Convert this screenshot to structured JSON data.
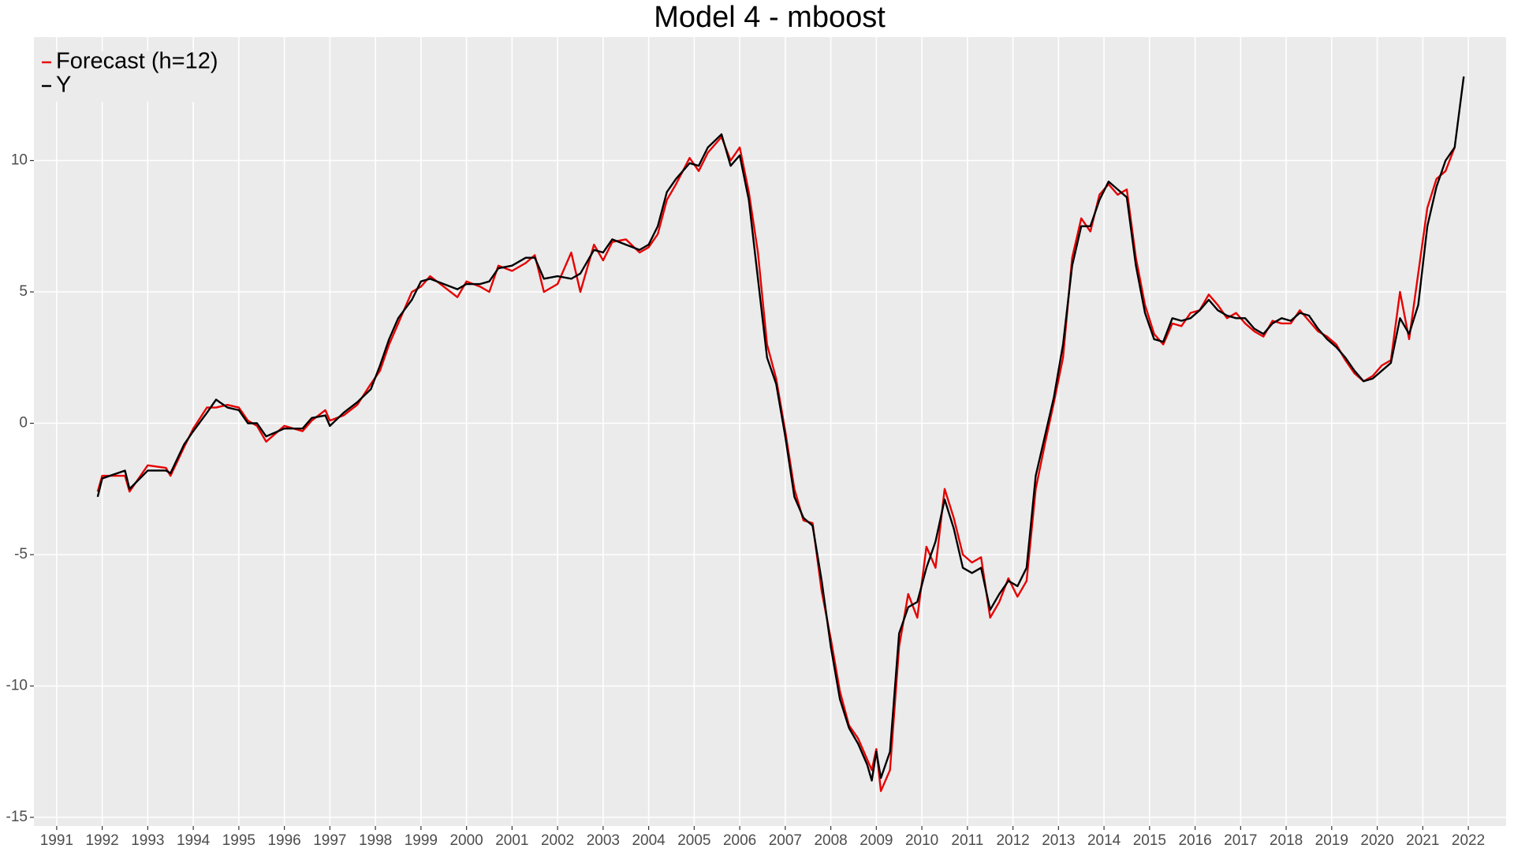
{
  "chart_data": {
    "type": "line",
    "title": "Model 4 - mboost",
    "x": [
      1991.9,
      1992.0,
      1992.5,
      1992.6,
      1993.0,
      1993.4,
      1993.5,
      1993.8,
      1994.0,
      1994.3,
      1994.5,
      1994.75,
      1995.0,
      1995.2,
      1995.4,
      1995.6,
      1996.0,
      1996.4,
      1996.6,
      1996.9,
      1997.0,
      1997.3,
      1997.6,
      1997.9,
      1998.1,
      1998.3,
      1998.5,
      1998.8,
      1999.0,
      1999.2,
      1999.5,
      1999.8,
      2000.0,
      2000.3,
      2000.5,
      2000.7,
      2001.0,
      2001.3,
      2001.5,
      2001.7,
      2002.0,
      2002.3,
      2002.5,
      2002.8,
      2003.0,
      2003.2,
      2003.5,
      2003.8,
      2004.0,
      2004.2,
      2004.4,
      2004.6,
      2004.9,
      2005.1,
      2005.3,
      2005.6,
      2005.8,
      2006.0,
      2006.2,
      2006.4,
      2006.6,
      2006.8,
      2007.0,
      2007.2,
      2007.4,
      2007.6,
      2007.8,
      2008.0,
      2008.2,
      2008.4,
      2008.6,
      2008.8,
      2008.9,
      2009.0,
      2009.1,
      2009.3,
      2009.5,
      2009.7,
      2009.9,
      2010.1,
      2010.3,
      2010.5,
      2010.7,
      2010.9,
      2011.1,
      2011.3,
      2011.5,
      2011.7,
      2011.9,
      2012.1,
      2012.3,
      2012.5,
      2012.7,
      2012.9,
      2013.1,
      2013.3,
      2013.5,
      2013.7,
      2013.9,
      2014.1,
      2014.3,
      2014.5,
      2014.7,
      2014.9,
      2015.1,
      2015.3,
      2015.5,
      2015.7,
      2015.9,
      2016.1,
      2016.3,
      2016.5,
      2016.7,
      2016.9,
      2017.1,
      2017.3,
      2017.5,
      2017.7,
      2017.9,
      2018.1,
      2018.3,
      2018.5,
      2018.7,
      2018.9,
      2019.1,
      2019.3,
      2019.5,
      2019.7,
      2019.9,
      2020.1,
      2020.3,
      2020.5,
      2020.7,
      2020.9,
      2021.1,
      2021.3,
      2021.5,
      2021.7,
      2021.9
    ],
    "series": [
      {
        "name": "Forecast (h=12)",
        "color": "#e60000",
        "values": [
          -2.6,
          -2.0,
          -2.0,
          -2.6,
          -1.6,
          -1.7,
          -2.0,
          -0.9,
          -0.2,
          0.6,
          0.6,
          0.7,
          0.6,
          0.1,
          -0.1,
          -0.7,
          -0.1,
          -0.3,
          0.1,
          0.5,
          0.1,
          0.3,
          0.7,
          1.5,
          2.0,
          3.0,
          3.8,
          5.0,
          5.2,
          5.6,
          5.2,
          4.8,
          5.4,
          5.2,
          5.0,
          6.0,
          5.8,
          6.1,
          6.4,
          5.0,
          5.3,
          6.5,
          5.0,
          6.8,
          6.2,
          6.9,
          7.0,
          6.5,
          6.7,
          7.2,
          8.5,
          9.1,
          10.1,
          9.6,
          10.3,
          10.9,
          10.0,
          10.5,
          8.8,
          6.5,
          3.0,
          1.7,
          -0.3,
          -2.5,
          -3.7,
          -3.8,
          -6.4,
          -8.2,
          -10.2,
          -11.5,
          -12.0,
          -12.8,
          -13.2,
          -12.4,
          -14.0,
          -13.2,
          -8.5,
          -6.5,
          -7.4,
          -4.7,
          -5.5,
          -2.5,
          -3.6,
          -5.0,
          -5.3,
          -5.1,
          -7.4,
          -6.8,
          -5.9,
          -6.6,
          -6.0,
          -2.5,
          -0.8,
          0.8,
          2.5,
          6.3,
          7.8,
          7.3,
          8.7,
          9.1,
          8.7,
          8.9,
          6.3,
          4.5,
          3.4,
          3.0,
          3.8,
          3.7,
          4.2,
          4.3,
          4.9,
          4.5,
          4.0,
          4.2,
          3.8,
          3.5,
          3.3,
          3.9,
          3.8,
          3.8,
          4.3,
          3.9,
          3.5,
          3.3,
          3.0,
          2.4,
          1.9,
          1.6,
          1.8,
          2.2,
          2.4,
          5.0,
          3.2,
          5.7,
          8.2,
          9.3,
          9.6,
          10.5,
          null
        ]
      },
      {
        "name": "Y",
        "color": "#000000",
        "values": [
          -2.8,
          -2.1,
          -1.8,
          -2.5,
          -1.8,
          -1.8,
          -1.9,
          -0.8,
          -0.3,
          0.4,
          0.9,
          0.6,
          0.5,
          0,
          0,
          -0.5,
          -0.2,
          -0.2,
          0.2,
          0.3,
          -0.1,
          0.4,
          0.8,
          1.3,
          2.2,
          3.2,
          4.0,
          4.7,
          5.4,
          5.5,
          5.3,
          5.1,
          5.3,
          5.3,
          5.4,
          5.9,
          6.0,
          6.3,
          6.3,
          5.5,
          5.6,
          5.5,
          5.7,
          6.6,
          6.5,
          7.0,
          6.8,
          6.6,
          6.8,
          7.5,
          8.8,
          9.3,
          9.9,
          9.8,
          10.5,
          11.0,
          9.8,
          10.2,
          8.5,
          5.5,
          2.5,
          1.5,
          -0.5,
          -2.8,
          -3.6,
          -3.9,
          -6.0,
          -8.5,
          -10.5,
          -11.6,
          -12.2,
          -13.0,
          -13.6,
          -12.5,
          -13.5,
          -12.5,
          -8.0,
          -7.0,
          -6.8,
          -5.5,
          -4.5,
          -2.9,
          -4.0,
          -5.5,
          -5.7,
          -5.5,
          -7.1,
          -6.5,
          -6.0,
          -6.2,
          -5.5,
          -2.0,
          -0.5,
          1.0,
          3.0,
          6.0,
          7.5,
          7.5,
          8.5,
          9.2,
          8.9,
          8.6,
          6.0,
          4.2,
          3.2,
          3.1,
          4.0,
          3.9,
          4.0,
          4.3,
          4.7,
          4.3,
          4.1,
          4.0,
          4.0,
          3.6,
          3.4,
          3.8,
          4.0,
          3.9,
          4.2,
          4.1,
          3.6,
          3.2,
          2.9,
          2.5,
          2.0,
          1.6,
          1.7,
          2.0,
          2.3,
          4.0,
          3.4,
          4.5,
          7.5,
          9.0,
          10.0,
          10.5,
          13.2
        ]
      }
    ],
    "xlim": [
      1990.5,
      2022.83
    ],
    "ylim": [
      -15.33,
      14.7
    ],
    "xticks": [
      1991,
      1992,
      1993,
      1994,
      1995,
      1996,
      1997,
      1998,
      1999,
      2000,
      2001,
      2002,
      2003,
      2004,
      2005,
      2006,
      2007,
      2008,
      2009,
      2010,
      2011,
      2012,
      2013,
      2014,
      2015,
      2016,
      2017,
      2018,
      2019,
      2020,
      2021,
      2022
    ],
    "yticks": [
      -15,
      -10,
      -5,
      0,
      5,
      10
    ],
    "grid": true,
    "legend": "top-left"
  }
}
